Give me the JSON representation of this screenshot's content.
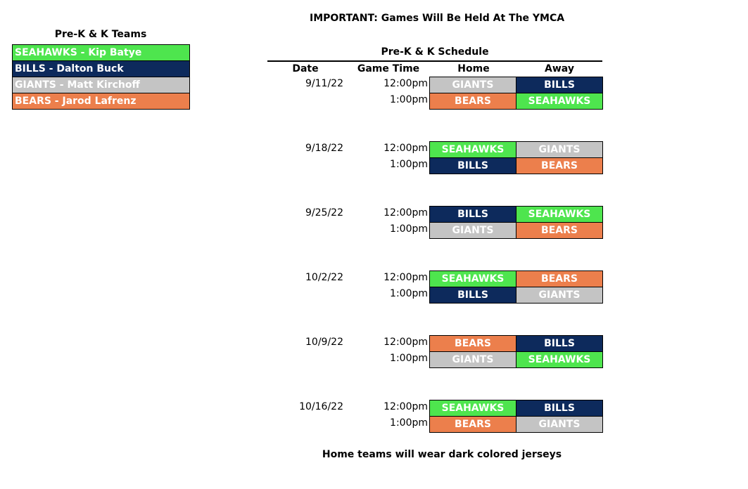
{
  "notice": "IMPORTANT: Games Will Be Held At The YMCA",
  "teams_title": "Pre-K & K Teams",
  "teams": [
    {
      "label": "SEAHAWKS -  Kip Batye",
      "key": "seahawks"
    },
    {
      "label": "BILLS - Dalton Buck",
      "key": "bills"
    },
    {
      "label": "GIANTS - Matt Kirchoff",
      "key": "giants"
    },
    {
      "label": "BEARS - Jarod Lafrenz",
      "key": "bears"
    }
  ],
  "team_colors": {
    "seahawks": "#4ee54e",
    "bills": "#0d2a5c",
    "giants": "#c4c4c4",
    "bears": "#ec7f4c"
  },
  "schedule_title": "Pre-K & K Schedule",
  "headers": {
    "date": "Date",
    "time": "Game Time",
    "home": "Home",
    "away": "Away"
  },
  "weeks": [
    {
      "date": "9/11/22",
      "games": [
        {
          "time": "12:00pm",
          "home": "GIANTS",
          "away": "BILLS"
        },
        {
          "time": "1:00pm",
          "home": "BEARS",
          "away": "SEAHAWKS"
        }
      ]
    },
    {
      "date": "9/18/22",
      "games": [
        {
          "time": "12:00pm",
          "home": "SEAHAWKS",
          "away": "GIANTS"
        },
        {
          "time": "1:00pm",
          "home": "BILLS",
          "away": "BEARS"
        }
      ]
    },
    {
      "date": "9/25/22",
      "games": [
        {
          "time": "12:00pm",
          "home": "BILLS",
          "away": "SEAHAWKS"
        },
        {
          "time": "1:00pm",
          "home": "GIANTS",
          "away": "BEARS"
        }
      ]
    },
    {
      "date": "10/2/22",
      "games": [
        {
          "time": "12:00pm",
          "home": "SEAHAWKS",
          "away": "BEARS"
        },
        {
          "time": "1:00pm",
          "home": "BILLS",
          "away": "GIANTS"
        }
      ]
    },
    {
      "date": "10/9/22",
      "games": [
        {
          "time": "12:00pm",
          "home": "BEARS",
          "away": "BILLS"
        },
        {
          "time": "1:00pm",
          "home": "GIANTS",
          "away": "SEAHAWKS"
        }
      ]
    },
    {
      "date": "10/16/22",
      "games": [
        {
          "time": "12:00pm",
          "home": "SEAHAWKS",
          "away": "BILLS"
        },
        {
          "time": "1:00pm",
          "home": "BEARS",
          "away": "GIANTS"
        }
      ]
    }
  ],
  "footer": "Home teams will wear dark colored jerseys"
}
